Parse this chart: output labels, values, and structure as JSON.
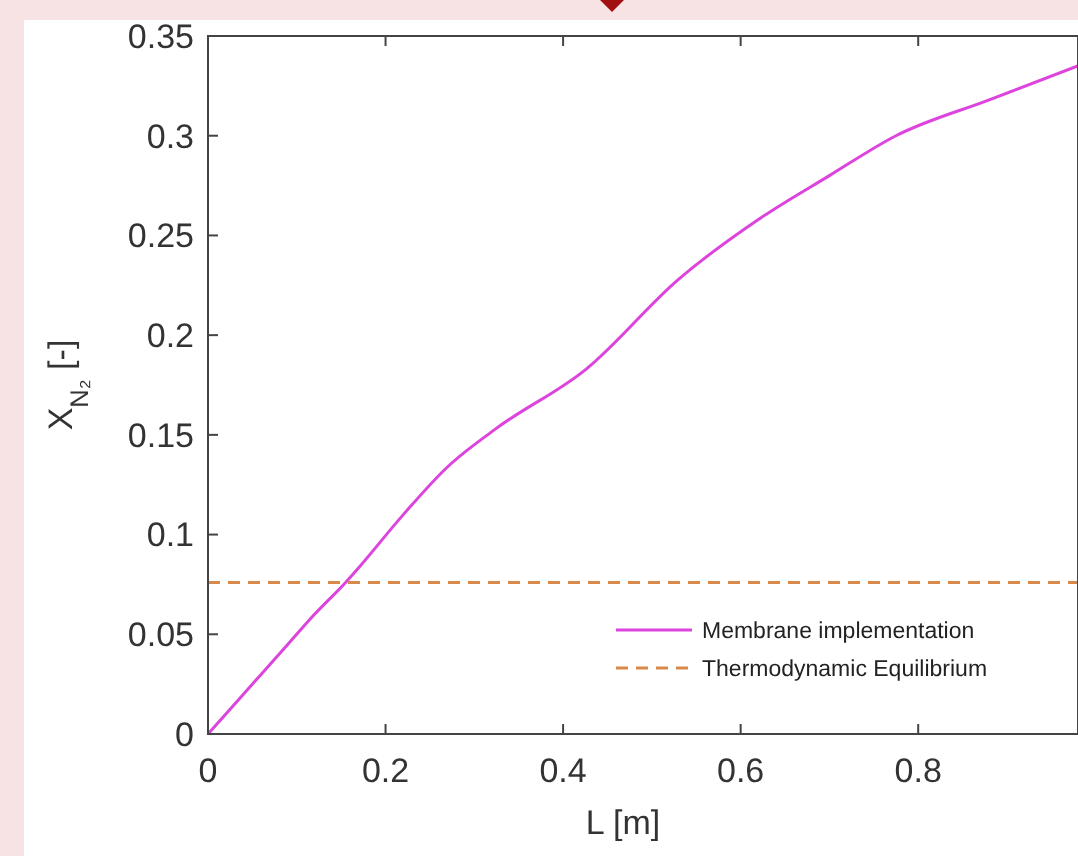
{
  "chart_data": {
    "type": "line",
    "xlabel": "L [m]",
    "ylabel": "X$_{N₂}$ [-]",
    "xlim": [
      0,
      0.98
    ],
    "xticks": [
      0,
      0.2,
      0.4,
      0.6,
      0.8
    ],
    "ylim": [
      0,
      0.35
    ],
    "yticks": [
      0,
      0.05,
      0.1,
      0.15,
      0.2,
      0.25,
      0.3,
      0.35
    ],
    "grid": false,
    "legend": "bottom right",
    "marker": "none",
    "series": [
      {
        "name": "Membrane implementation",
        "color": "#dd44dd",
        "line_style": "solid",
        "x": [
          0,
          0.03,
          0.06,
          0.092,
          0.12,
          0.155,
          0.169,
          0.22,
          0.27,
          0.324,
          0.426,
          0.53,
          0.62,
          0.7,
          0.775,
          0.88,
          0.98
        ],
        "values": [
          0,
          0.015,
          0.03,
          0.046,
          0.06,
          0.076,
          0.083,
          0.11,
          0.134,
          0.153,
          0.183,
          0.228,
          0.258,
          0.28,
          0.3,
          0.318,
          0.335
        ]
      },
      {
        "name": "Thermodynamic Equilibrium",
        "color": "#d9894a",
        "line_style": "dashed",
        "x": [
          0,
          0.98
        ],
        "values": [
          0.076,
          0.076
        ]
      }
    ]
  }
}
